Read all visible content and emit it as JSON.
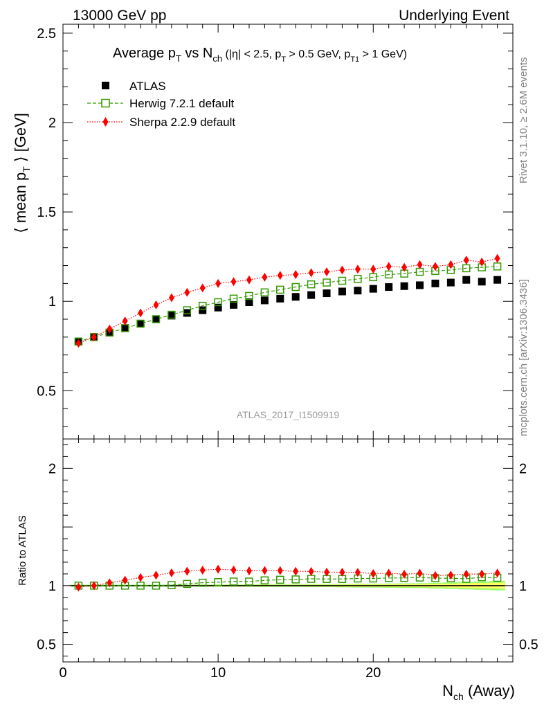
{
  "header": {
    "left": "13000 GeV pp",
    "right": "Underlying Event"
  },
  "side": {
    "rivet": "Rivet 3.1.10, ≥ 2.6M events",
    "mcplots": "mcplots.cern.ch [arXiv:1306.3436]"
  },
  "watermark": "ATLAS_2017_I1509919",
  "colors": {
    "atlas": "#000000",
    "herwig": "#339900",
    "sherpa": "#ff0000",
    "band_inner": "#ffff66",
    "band_outer": "#99ff66"
  },
  "chart_data": [
    {
      "type": "scatter",
      "title": "Average p_T vs N_ch (|η| < 2.5, p_T > 0.5 GeV, p_T1 > 1 GeV)",
      "title_parts": {
        "a": "Average p",
        "a_sub": "T",
        "b": " vs N",
        "b_sub": "ch",
        "c": " (|η| < 2.5, p",
        "c_sub": "T",
        "d": " > 0.5 GeV, p",
        "d_sub": "T1",
        "e": " > 1 GeV)"
      },
      "xlabel": "N_ch (Away)",
      "xlabel_parts": {
        "a": "N",
        "a_sub": "ch",
        "b": " (Away)"
      },
      "ylabel": "⟨ mean p_T ⟩ [GeV]",
      "ylabel_parts": {
        "a": "⟨ mean p",
        "a_sub": "T",
        "b": " ⟩ [GeV]"
      },
      "xlim": [
        0,
        29
      ],
      "ylim": [
        0.23,
        2.55
      ],
      "yticks": [
        0.5,
        1,
        1.5,
        2,
        2.5
      ],
      "ytick_labels": [
        "0.5",
        "1",
        "1.5",
        "2",
        "2.5"
      ],
      "legend": "top-left",
      "x": [
        1,
        2,
        3,
        4,
        5,
        6,
        7,
        8,
        9,
        10,
        11,
        12,
        13,
        14,
        15,
        16,
        17,
        18,
        19,
        20,
        21,
        22,
        23,
        24,
        25,
        26,
        27,
        28
      ],
      "series": [
        {
          "name": "ATLAS",
          "marker": "filled-square",
          "values": [
            0.775,
            0.8,
            0.825,
            0.85,
            0.875,
            0.9,
            0.92,
            0.935,
            0.95,
            0.965,
            0.98,
            0.995,
            1.005,
            1.015,
            1.025,
            1.035,
            1.045,
            1.055,
            1.06,
            1.07,
            1.08,
            1.085,
            1.09,
            1.1,
            1.105,
            1.12,
            1.11,
            1.12
          ]
        },
        {
          "name": "Herwig 7.2.1 default",
          "marker": "open-square",
          "line": "dashed",
          "values": [
            0.775,
            0.8,
            0.825,
            0.85,
            0.875,
            0.9,
            0.925,
            0.95,
            0.975,
            0.995,
            1.015,
            1.03,
            1.05,
            1.065,
            1.08,
            1.095,
            1.105,
            1.115,
            1.125,
            1.135,
            1.15,
            1.155,
            1.165,
            1.17,
            1.175,
            1.185,
            1.19,
            1.195
          ]
        },
        {
          "name": "Sherpa 2.2.9 default",
          "marker": "filled-diamond",
          "line": "dotted",
          "values": [
            0.765,
            0.8,
            0.845,
            0.89,
            0.935,
            0.98,
            1.02,
            1.05,
            1.075,
            1.1,
            1.11,
            1.12,
            1.135,
            1.145,
            1.15,
            1.16,
            1.165,
            1.175,
            1.18,
            1.18,
            1.195,
            1.19,
            1.205,
            1.195,
            1.205,
            1.23,
            1.22,
            1.24
          ]
        }
      ]
    },
    {
      "type": "scatter",
      "ylabel": "Ratio to ATLAS",
      "xlabel": "N_ch (Away)",
      "xlim": [
        0,
        29
      ],
      "ylim": [
        0.35,
        2.25
      ],
      "yticks": [
        0.5,
        1,
        2
      ],
      "ytick_labels": [
        "0.5",
        "1",
        "2"
      ],
      "xticks": [
        0,
        10,
        20
      ],
      "xtick_labels": [
        "0",
        "10",
        "20"
      ],
      "x": [
        1,
        2,
        3,
        4,
        5,
        6,
        7,
        8,
        9,
        10,
        11,
        12,
        13,
        14,
        15,
        16,
        17,
        18,
        19,
        20,
        21,
        22,
        23,
        24,
        25,
        26,
        27,
        28
      ],
      "series": [
        {
          "name": "Herwig 7.2.1 default",
          "values": [
            1.0,
            1.0,
            1.0,
            1.0,
            1.0,
            1.0,
            1.005,
            1.015,
            1.025,
            1.03,
            1.035,
            1.035,
            1.045,
            1.05,
            1.053,
            1.058,
            1.057,
            1.057,
            1.061,
            1.061,
            1.065,
            1.065,
            1.069,
            1.064,
            1.063,
            1.058,
            1.072,
            1.067
          ]
        },
        {
          "name": "Sherpa 2.2.9 default",
          "values": [
            0.987,
            1.0,
            1.024,
            1.047,
            1.069,
            1.089,
            1.109,
            1.123,
            1.132,
            1.14,
            1.133,
            1.126,
            1.129,
            1.128,
            1.122,
            1.121,
            1.115,
            1.114,
            1.113,
            1.103,
            1.106,
            1.097,
            1.106,
            1.086,
            1.09,
            1.098,
            1.099,
            1.107
          ]
        }
      ],
      "band_halfwidth": [
        0.005,
        0.005,
        0.005,
        0.005,
        0.005,
        0.005,
        0.005,
        0.005,
        0.006,
        0.006,
        0.006,
        0.006,
        0.007,
        0.007,
        0.007,
        0.008,
        0.008,
        0.009,
        0.01,
        0.01,
        0.011,
        0.012,
        0.013,
        0.015,
        0.017,
        0.02,
        0.022,
        0.025
      ]
    }
  ]
}
